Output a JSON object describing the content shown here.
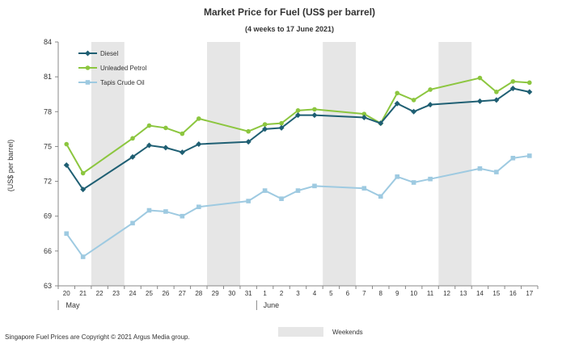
{
  "chart_data": {
    "type": "line",
    "title": "Market Price for Fuel (US$  per barrel)",
    "subtitle": "(4 weeks to 17 June 2021)",
    "ylabel": "(US$ per barrel)",
    "ylim": [
      63,
      84
    ],
    "yticks": [
      63,
      66,
      69,
      72,
      75,
      78,
      81,
      84
    ],
    "x_labels": [
      "20",
      "21",
      "22",
      "23",
      "24",
      "25",
      "26",
      "27",
      "28",
      "29",
      "30",
      "31",
      "1",
      "2",
      "3",
      "4",
      "5",
      "6",
      "7",
      "8",
      "9",
      "10",
      "11",
      "12",
      "13",
      "14",
      "15",
      "16",
      "17"
    ],
    "months": [
      {
        "label": "May",
        "index": 0
      },
      {
        "label": "June",
        "index": 12
      }
    ],
    "weekends": [
      [
        2,
        3
      ],
      [
        9,
        10
      ],
      [
        16,
        17
      ],
      [
        23,
        24
      ]
    ],
    "weekend_legend": "Weekends",
    "legend_position": "top-left",
    "grid": false,
    "series": [
      {
        "name": "Diesel",
        "color": "#1f5f73",
        "marker": "diamond",
        "points": [
          [
            0,
            73.4
          ],
          [
            1,
            71.3
          ],
          [
            4,
            74.1
          ],
          [
            5,
            75.1
          ],
          [
            6,
            74.9
          ],
          [
            7,
            74.5
          ],
          [
            8,
            75.2
          ],
          [
            11,
            75.4
          ],
          [
            12,
            76.5
          ],
          [
            13,
            76.6
          ],
          [
            14,
            77.7
          ],
          [
            15,
            77.7
          ],
          [
            18,
            77.5
          ],
          [
            19,
            77.0
          ],
          [
            20,
            78.7
          ],
          [
            21,
            78.0
          ],
          [
            22,
            78.6
          ],
          [
            25,
            78.9
          ],
          [
            26,
            79.0
          ],
          [
            27,
            80.0
          ],
          [
            28,
            79.7
          ]
        ]
      },
      {
        "name": "Unleaded Petrol",
        "color": "#8cc63f",
        "marker": "circle",
        "points": [
          [
            0,
            75.2
          ],
          [
            1,
            72.7
          ],
          [
            4,
            75.7
          ],
          [
            5,
            76.8
          ],
          [
            6,
            76.6
          ],
          [
            7,
            76.1
          ],
          [
            8,
            77.4
          ],
          [
            11,
            76.3
          ],
          [
            12,
            76.9
          ],
          [
            13,
            77.0
          ],
          [
            14,
            78.1
          ],
          [
            15,
            78.2
          ],
          [
            18,
            77.8
          ],
          [
            19,
            77.0
          ],
          [
            20,
            79.6
          ],
          [
            21,
            79.0
          ],
          [
            22,
            79.9
          ],
          [
            25,
            80.9
          ],
          [
            26,
            79.7
          ],
          [
            27,
            80.6
          ],
          [
            28,
            80.5
          ]
        ]
      },
      {
        "name": "Tapis Crude Oil",
        "color": "#9ecae1",
        "marker": "square",
        "points": [
          [
            0,
            67.5
          ],
          [
            1,
            65.5
          ],
          [
            4,
            68.4
          ],
          [
            5,
            69.5
          ],
          [
            6,
            69.4
          ],
          [
            7,
            69.0
          ],
          [
            8,
            69.8
          ],
          [
            11,
            70.3
          ],
          [
            12,
            71.2
          ],
          [
            13,
            70.5
          ],
          [
            14,
            71.2
          ],
          [
            15,
            71.6
          ],
          [
            18,
            71.4
          ],
          [
            19,
            70.7
          ],
          [
            20,
            72.4
          ],
          [
            21,
            71.9
          ],
          [
            22,
            72.2
          ],
          [
            25,
            73.1
          ],
          [
            26,
            72.8
          ],
          [
            27,
            74.0
          ],
          [
            28,
            74.2
          ]
        ]
      }
    ]
  },
  "footer": {
    "copyright": "Singapore Fuel Prices are Copyright © 2021 Argus Media group."
  }
}
